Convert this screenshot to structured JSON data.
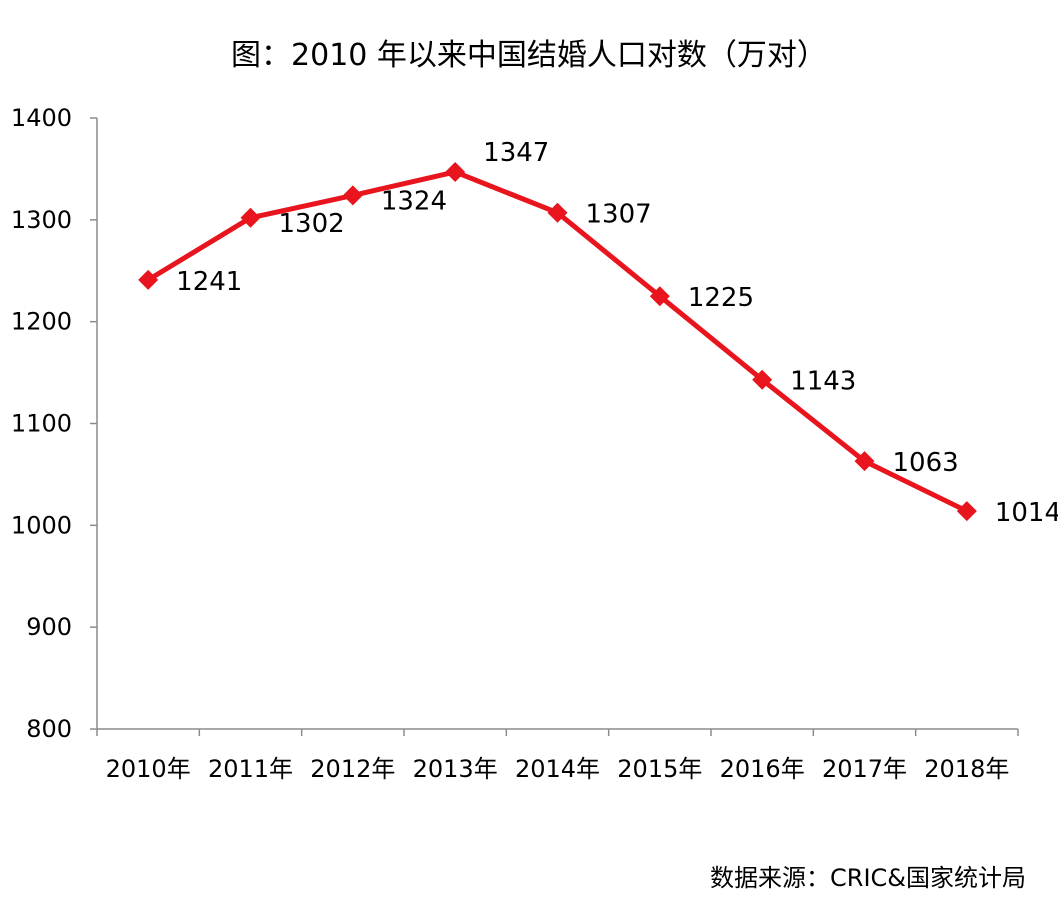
{
  "chart_data": {
    "type": "line",
    "title": "图：2010 年以来中国结婚人口对数（万对）",
    "categories": [
      "2010年",
      "2011年",
      "2012年",
      "2013年",
      "2014年",
      "2015年",
      "2016年",
      "2017年",
      "2018年"
    ],
    "series": [
      {
        "values": [
          1241,
          1302,
          1324,
          1347,
          1307,
          1225,
          1143,
          1063,
          1014
        ]
      }
    ],
    "data_labels": [
      "1241",
      "1302",
      "1324",
      "1347",
      "1307",
      "1225",
      "1143",
      "1063",
      "1014"
    ],
    "ylim": [
      800,
      1400
    ],
    "yticks": [
      800,
      900,
      1000,
      1100,
      1200,
      1300,
      1400
    ],
    "marker": "diamond",
    "line_color": "#e8141e",
    "grid": false,
    "legend": "none"
  },
  "source": "数据来源：CRIC&国家统计局"
}
